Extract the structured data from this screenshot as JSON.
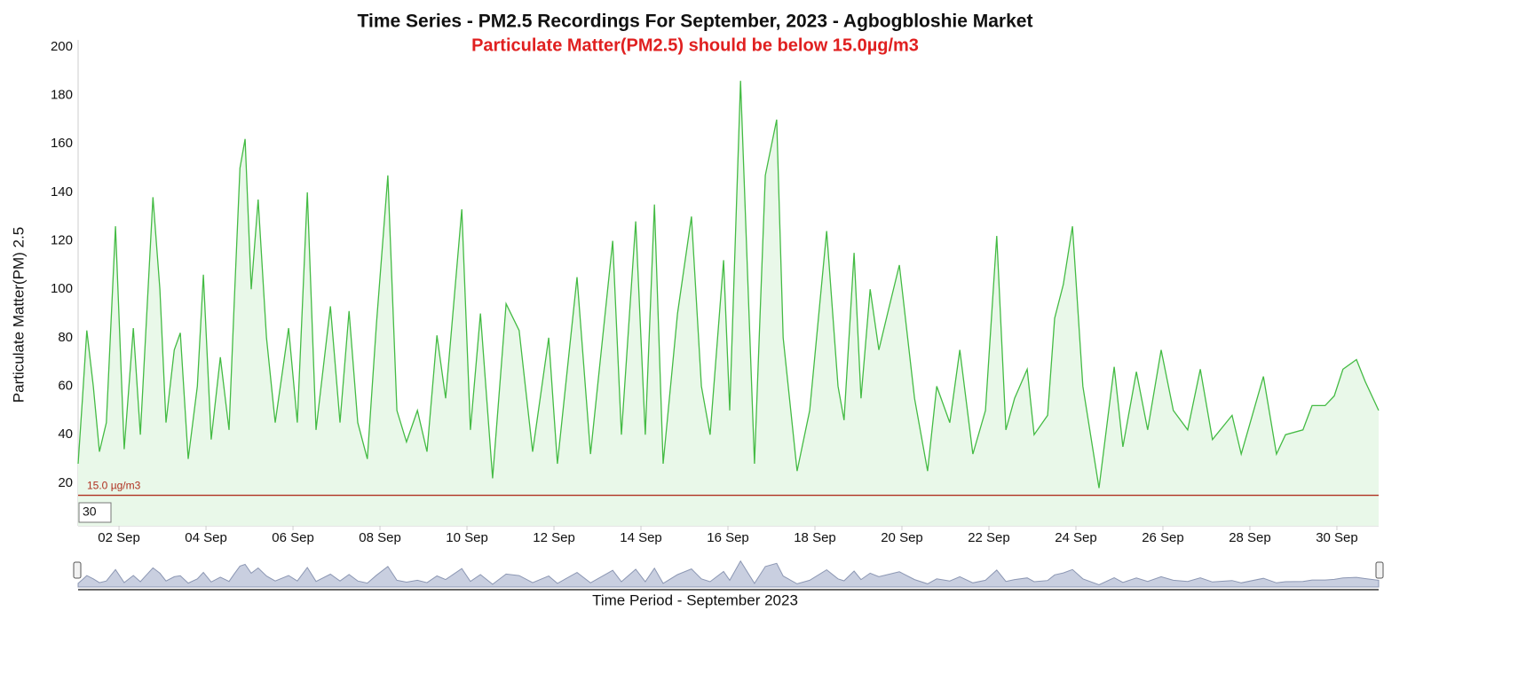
{
  "chart_data": {
    "type": "line",
    "title": "Time Series - PM2.5 Recordings For September, 2023 - Agbogbloshie Market",
    "subtitle": "Particulate Matter(PM2.5) should be below 15.0µg/m3",
    "y_label": "Particulate Matter(PM) 2.5",
    "x_label": "Time Period - September 2023",
    "color": "#44bb44",
    "fill_color": "#e9f8e9",
    "navigator_color": "#8c97b3",
    "threshold": {
      "value": 15,
      "label": "15.0 µg/m3",
      "color": "#b03020"
    },
    "zoom_input": "30",
    "x": [
      1.06,
      1.16,
      1.26,
      1.41,
      1.55,
      1.71,
      1.92,
      2.12,
      2.33,
      2.49,
      2.61,
      2.78,
      2.94,
      3.08,
      3.27,
      3.41,
      3.59,
      3.8,
      3.94,
      4.12,
      4.33,
      4.53,
      4.65,
      4.78,
      4.9,
      5.04,
      5.2,
      5.39,
      5.59,
      5.9,
      6.1,
      6.33,
      6.53,
      6.86,
      7.08,
      7.29,
      7.49,
      7.71,
      7.92,
      8.18,
      8.39,
      8.61,
      8.86,
      9.08,
      9.31,
      9.51,
      9.88,
      10.08,
      10.31,
      10.59,
      10.9,
      11.2,
      11.51,
      11.88,
      12.08,
      12.53,
      12.84,
      13.35,
      13.55,
      13.88,
      14.1,
      14.31,
      14.51,
      14.84,
      15.16,
      15.39,
      15.59,
      15.9,
      16.04,
      16.29,
      16.61,
      16.86,
      17.12,
      17.27,
      17.59,
      17.88,
      18.27,
      18.53,
      18.67,
      18.9,
      19.06,
      19.27,
      19.47,
      19.67,
      19.94,
      20.29,
      20.59,
      20.8,
      21.1,
      21.33,
      21.63,
      21.92,
      22.18,
      22.39,
      22.59,
      22.88,
      23.04,
      23.35,
      23.51,
      23.71,
      23.92,
      24.16,
      24.53,
      24.88,
      25.08,
      25.39,
      25.65,
      25.96,
      26.24,
      26.57,
      26.86,
      27.14,
      27.59,
      27.8,
      28.31,
      28.61,
      28.82,
      29.22,
      29.43,
      29.73,
      29.94,
      30.14,
      30.45,
      30.65,
      30.96
    ],
    "values": [
      28,
      55,
      83,
      60,
      33,
      45,
      126,
      34,
      84,
      40,
      80,
      138,
      100,
      45,
      75,
      82,
      30,
      60,
      106,
      38,
      72,
      42,
      95,
      150,
      162,
      100,
      137,
      80,
      45,
      84,
      45,
      140,
      42,
      93,
      45,
      91,
      45,
      30,
      86,
      147,
      50,
      37,
      50,
      33,
      81,
      55,
      133,
      42,
      90,
      22,
      94,
      83,
      33,
      80,
      28,
      105,
      32,
      120,
      40,
      128,
      40,
      135,
      28,
      90,
      130,
      60,
      40,
      112,
      50,
      186,
      28,
      147,
      170,
      80,
      25,
      50,
      124,
      60,
      46,
      115,
      55,
      100,
      75,
      90,
      110,
      55,
      25,
      60,
      45,
      75,
      32,
      50,
      122,
      42,
      55,
      67,
      40,
      48,
      88,
      102,
      126,
      60,
      18,
      68,
      35,
      66,
      42,
      75,
      50,
      42,
      67,
      38,
      48,
      32,
      64,
      32,
      40,
      42,
      52,
      52,
      56,
      67,
      71,
      62,
      50
    ],
    "xlim": [
      1.06,
      30.96
    ],
    "xticks": [
      {
        "value": 2,
        "label": "02 Sep"
      },
      {
        "value": 4,
        "label": "04 Sep"
      },
      {
        "value": 6,
        "label": "06 Sep"
      },
      {
        "value": 8,
        "label": "08 Sep"
      },
      {
        "value": 10,
        "label": "10 Sep"
      },
      {
        "value": 12,
        "label": "12 Sep"
      },
      {
        "value": 14,
        "label": "14 Sep"
      },
      {
        "value": 16,
        "label": "16 Sep"
      },
      {
        "value": 18,
        "label": "18 Sep"
      },
      {
        "value": 20,
        "label": "20 Sep"
      },
      {
        "value": 22,
        "label": "22 Sep"
      },
      {
        "value": 24,
        "label": "24 Sep"
      },
      {
        "value": 26,
        "label": "26 Sep"
      },
      {
        "value": 28,
        "label": "28 Sep"
      },
      {
        "value": 30,
        "label": "30 Sep"
      }
    ],
    "ylim": [
      2.4,
      202.9
    ],
    "yticks": [
      20,
      40,
      60,
      80,
      100,
      120,
      140,
      160,
      180,
      200
    ],
    "grid": false
  }
}
